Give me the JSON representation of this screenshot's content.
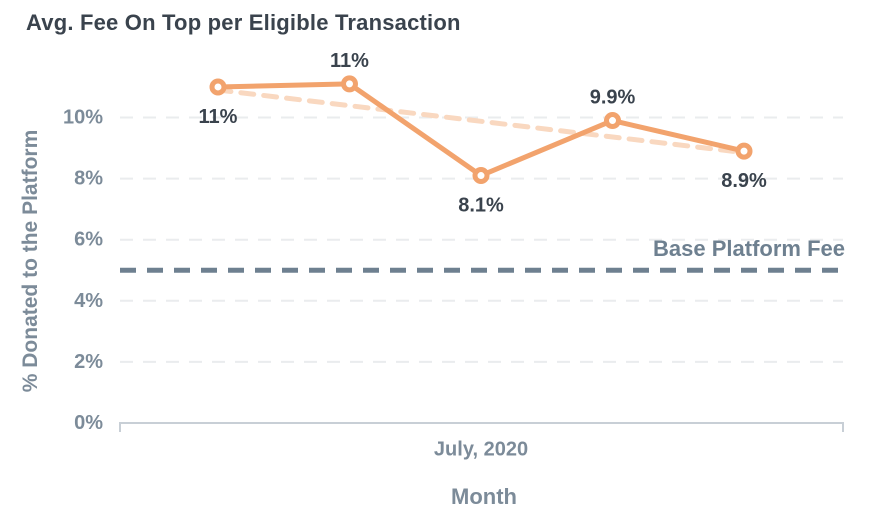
{
  "title": "Avg. Fee On Top per Eligible Transaction",
  "axes": {
    "y_label": "% Donated to the Platform",
    "x_label": "Month",
    "x_tick": "July, 2020"
  },
  "chart_data": {
    "type": "line",
    "title": "Avg. Fee On Top per Eligible Transaction",
    "xlabel": "Month",
    "ylabel": "% Donated to the Platform",
    "x_tick_labels": [
      "July, 2020"
    ],
    "x_tick_center_index": 2,
    "values": [
      11,
      11.1,
      8.1,
      9.9,
      8.9
    ],
    "point_labels": [
      "11%",
      "11%",
      "8.1%",
      "9.9%",
      "8.9%"
    ],
    "label_placement": [
      "below",
      "above",
      "below",
      "above",
      "below"
    ],
    "ylim": [
      0,
      11.5
    ],
    "y_ticks": [
      0,
      2,
      4,
      6,
      8,
      10
    ],
    "y_tick_labels": [
      "0%",
      "2%",
      "4%",
      "6%",
      "8%",
      "10%"
    ],
    "grid": true,
    "legend": "none",
    "baseline": {
      "value": 5,
      "label": "Base Platform Fee"
    },
    "trend": {
      "start_value": 10.9,
      "end_value": 8.85,
      "style": "dashed"
    },
    "colors": {
      "series": "#F2A36D",
      "trend": "#F9D8C0",
      "baseline": "#6E8090",
      "grid": "#EAECEE",
      "axis": "#C8CFD6",
      "label_text": "#3A434D",
      "tick_text": "#7C8B99",
      "title_text": "#3A434D",
      "background": "#FFFFFF"
    }
  }
}
